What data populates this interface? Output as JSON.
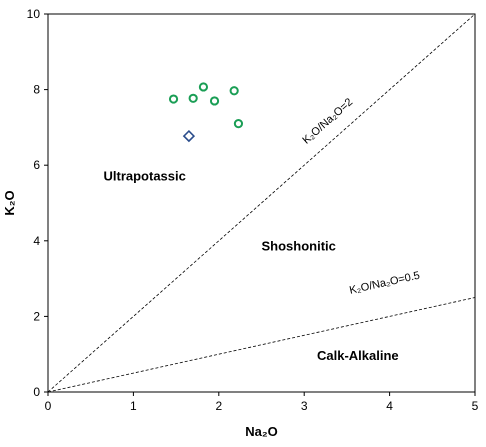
{
  "chart_data": {
    "type": "scatter",
    "xlabel": "Na₂O",
    "ylabel": "K₂O",
    "xlim": [
      0,
      5
    ],
    "ylim": [
      0,
      10
    ],
    "x_ticks": [
      "0",
      "1",
      "2",
      "3",
      "4",
      "5"
    ],
    "y_ticks": [
      "0",
      "2",
      "4",
      "6",
      "8",
      "10"
    ],
    "grid": false,
    "fields": [
      {
        "label": "Ultrapotassic",
        "x": 0.65,
        "y": 5.6
      },
      {
        "label": "Shoshonitic",
        "x": 2.5,
        "y": 3.75
      },
      {
        "label": "Calk-Alkaline",
        "x": 3.15,
        "y": 0.85
      }
    ],
    "ratio_lines": [
      {
        "label": "K₂O/Na₂O=2",
        "slope": 2,
        "x_end": 5,
        "label_x": 3.3,
        "label_y": 7.1
      },
      {
        "label": "K₂O/Na₂O=0.5",
        "slope": 0.5,
        "x_end": 5,
        "label_x": 3.95,
        "label_y": 2.8
      }
    ],
    "series": [
      {
        "marker": "circle",
        "color": "#1a9e55",
        "points": [
          {
            "x": 1.47,
            "y": 7.75
          },
          {
            "x": 1.7,
            "y": 7.77
          },
          {
            "x": 1.82,
            "y": 8.07
          },
          {
            "x": 1.95,
            "y": 7.7
          },
          {
            "x": 2.18,
            "y": 7.97
          },
          {
            "x": 2.23,
            "y": 7.1
          }
        ]
      },
      {
        "marker": "diamond",
        "color": "#2b4d8c",
        "points": [
          {
            "x": 1.65,
            "y": 6.77
          }
        ]
      }
    ]
  }
}
